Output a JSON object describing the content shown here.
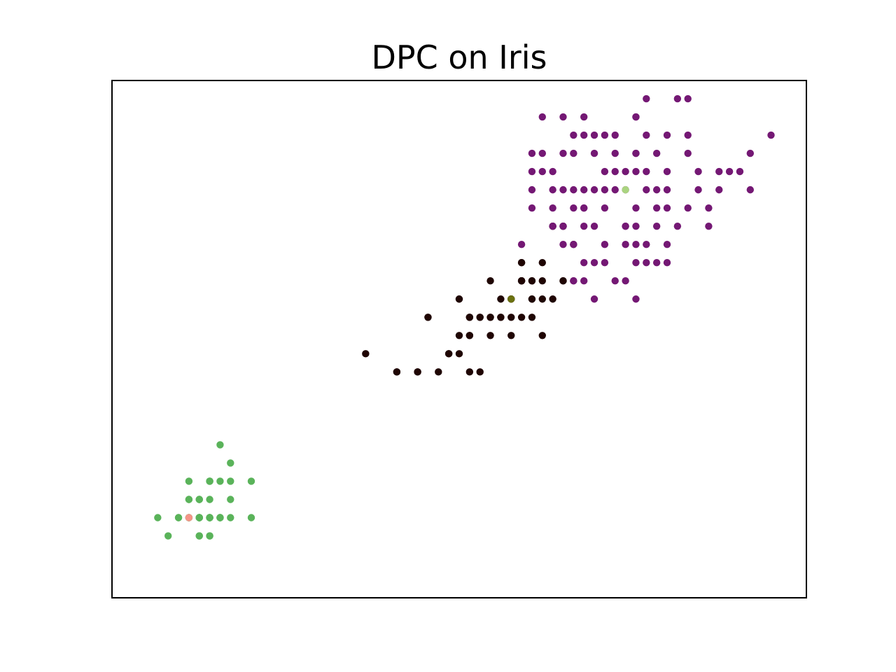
{
  "chart_data": {
    "type": "scatter",
    "title": "DPC on Iris",
    "xlabel": "",
    "ylabel": "",
    "grid": false,
    "axes_ticks": false,
    "xlim": [
      0.56,
      7.24
    ],
    "ylim": [
      -0.24,
      2.6
    ],
    "series": [
      {
        "color": "#5ab35a",
        "points": [
          [
            1.4,
            0.2
          ],
          [
            1.4,
            0.2
          ],
          [
            1.3,
            0.2
          ],
          [
            1.5,
            0.2
          ],
          [
            1.4,
            0.2
          ],
          [
            1.7,
            0.4
          ],
          [
            1.4,
            0.3
          ],
          [
            1.5,
            0.2
          ],
          [
            1.4,
            0.2
          ],
          [
            1.5,
            0.1
          ],
          [
            1.5,
            0.2
          ],
          [
            1.6,
            0.2
          ],
          [
            1.4,
            0.1
          ],
          [
            1.1,
            0.1
          ],
          [
            1.2,
            0.2
          ],
          [
            1.5,
            0.4
          ],
          [
            1.3,
            0.4
          ],
          [
            1.4,
            0.3
          ],
          [
            1.7,
            0.3
          ],
          [
            1.5,
            0.3
          ],
          [
            1.7,
            0.2
          ],
          [
            1.5,
            0.4
          ],
          [
            1.0,
            0.2
          ],
          [
            1.7,
            0.5
          ],
          [
            1.9,
            0.2
          ],
          [
            1.6,
            0.2
          ],
          [
            1.6,
            0.4
          ],
          [
            1.5,
            0.2
          ],
          [
            1.4,
            0.2
          ],
          [
            1.6,
            0.2
          ],
          [
            1.6,
            0.2
          ],
          [
            1.5,
            0.4
          ],
          [
            1.5,
            0.1
          ],
          [
            1.4,
            0.2
          ],
          [
            1.5,
            0.2
          ],
          [
            1.2,
            0.2
          ],
          [
            1.3,
            0.2
          ],
          [
            1.4,
            0.1
          ],
          [
            1.3,
            0.2
          ],
          [
            1.5,
            0.2
          ],
          [
            1.3,
            0.3
          ],
          [
            1.3,
            0.3
          ],
          [
            1.3,
            0.2
          ],
          [
            1.6,
            0.6
          ],
          [
            1.9,
            0.4
          ],
          [
            1.4,
            0.3
          ],
          [
            1.6,
            0.2
          ],
          [
            1.4,
            0.2
          ],
          [
            1.5,
            0.2
          ],
          [
            1.4,
            0.2
          ]
        ]
      },
      {
        "color": "#1f0503",
        "points": [
          [
            4.5,
            1.5
          ],
          [
            4.9,
            1.5
          ],
          [
            4.0,
            1.3
          ],
          [
            4.6,
            1.5
          ],
          [
            4.5,
            1.3
          ],
          [
            4.7,
            1.6
          ],
          [
            3.3,
            1.0
          ],
          [
            4.6,
            1.3
          ],
          [
            3.9,
            1.4
          ],
          [
            3.5,
            1.0
          ],
          [
            4.2,
            1.5
          ],
          [
            4.0,
            1.0
          ],
          [
            4.7,
            1.4
          ],
          [
            3.6,
            1.3
          ],
          [
            4.4,
            1.4
          ],
          [
            4.5,
            1.5
          ],
          [
            4.1,
            1.0
          ],
          [
            4.5,
            1.5
          ],
          [
            3.9,
            1.1
          ],
          [
            4.0,
            1.3
          ],
          [
            4.7,
            1.2
          ],
          [
            4.3,
            1.3
          ],
          [
            4.4,
            1.4
          ],
          [
            4.8,
            1.4
          ],
          [
            3.5,
            1.0
          ],
          [
            3.8,
            1.1
          ],
          [
            3.7,
            1.0
          ],
          [
            3.9,
            1.2
          ],
          [
            4.5,
            1.6
          ],
          [
            4.7,
            1.5
          ],
          [
            4.4,
            1.3
          ],
          [
            4.1,
            1.3
          ],
          [
            4.0,
            1.3
          ],
          [
            4.4,
            1.2
          ],
          [
            4.6,
            1.4
          ],
          [
            4.0,
            1.2
          ],
          [
            3.3,
            1.0
          ],
          [
            4.2,
            1.3
          ],
          [
            4.2,
            1.2
          ],
          [
            4.3,
            1.3
          ],
          [
            3.0,
            1.1
          ],
          [
            4.1,
            1.3
          ],
          [
            4.9,
            1.5
          ],
          [
            4.8,
            1.8
          ],
          [
            4.9,
            1.8
          ],
          [
            4.8,
            1.8
          ],
          [
            5.0,
            1.7
          ],
          [
            4.6,
            1.5
          ],
          [
            4.5,
            1.5
          ],
          [
            4.6,
            1.4
          ],
          [
            4.9,
            1.8
          ],
          [
            4.2,
            1.3
          ],
          [
            4.3,
            1.4
          ],
          [
            4.5,
            1.6
          ],
          [
            3.6,
            1.3
          ],
          [
            3.9,
            1.4
          ],
          [
            4.0,
            1.2
          ],
          [
            3.8,
            1.1
          ]
        ]
      },
      {
        "color": "#741874",
        "points": [
          [
            6.0,
            2.5
          ],
          [
            5.1,
            1.9
          ],
          [
            5.9,
            2.1
          ],
          [
            5.6,
            1.8
          ],
          [
            5.8,
            2.2
          ],
          [
            6.6,
            2.1
          ],
          [
            4.5,
            1.7
          ],
          [
            6.3,
            1.8
          ],
          [
            5.8,
            1.8
          ],
          [
            6.1,
            2.5
          ],
          [
            5.1,
            2.0
          ],
          [
            5.3,
            1.9
          ],
          [
            5.5,
            2.1
          ],
          [
            5.0,
            2.0
          ],
          [
            5.1,
            2.4
          ],
          [
            5.3,
            2.3
          ],
          [
            5.5,
            1.8
          ],
          [
            6.7,
            2.2
          ],
          [
            6.9,
            2.3
          ],
          [
            5.0,
            1.5
          ],
          [
            5.7,
            2.3
          ],
          [
            4.9,
            2.0
          ],
          [
            6.7,
            2.0
          ],
          [
            4.9,
            1.8
          ],
          [
            5.7,
            2.1
          ],
          [
            6.0,
            1.8
          ],
          [
            4.8,
            1.8
          ],
          [
            4.9,
            1.8
          ],
          [
            5.6,
            2.1
          ],
          [
            5.8,
            1.6
          ],
          [
            6.1,
            1.9
          ],
          [
            6.4,
            2.0
          ],
          [
            5.6,
            2.2
          ],
          [
            5.1,
            1.5
          ],
          [
            5.6,
            1.4
          ],
          [
            6.1,
            2.3
          ],
          [
            5.6,
            2.4
          ],
          [
            5.5,
            1.8
          ],
          [
            4.8,
            1.8
          ],
          [
            5.4,
            2.1
          ],
          [
            5.6,
            2.4
          ],
          [
            5.1,
            2.3
          ],
          [
            5.1,
            1.9
          ],
          [
            5.9,
            2.3
          ],
          [
            5.7,
            2.5
          ],
          [
            5.2,
            2.3
          ],
          [
            5.0,
            1.9
          ],
          [
            5.2,
            2.0
          ],
          [
            5.4,
            2.3
          ],
          [
            5.1,
            1.8
          ],
          [
            5.0,
            1.5
          ],
          [
            5.3,
            1.6
          ],
          [
            5.4,
            1.5
          ],
          [
            5.7,
            1.6
          ],
          [
            5.9,
            1.9
          ],
          [
            5.2,
            1.8
          ],
          [
            5.5,
            1.7
          ],
          [
            5.8,
            1.9
          ],
          [
            6.1,
            2.2
          ],
          [
            6.4,
            2.1
          ],
          [
            4.8,
            1.9
          ],
          [
            5.2,
            2.2
          ],
          [
            5.3,
            2.0
          ],
          [
            5.2,
            1.4
          ],
          [
            4.7,
            2.2
          ],
          [
            4.6,
            2.0
          ],
          [
            4.8,
            2.1
          ],
          [
            4.9,
            2.4
          ],
          [
            5.4,
            2.2
          ],
          [
            5.6,
            1.9
          ],
          [
            5.9,
            2.0
          ],
          [
            4.6,
            1.9
          ],
          [
            4.7,
            2.4
          ],
          [
            4.8,
            2.0
          ],
          [
            5.0,
            2.2
          ],
          [
            5.5,
            2.0
          ],
          [
            5.6,
            1.7
          ],
          [
            6.3,
            1.9
          ],
          [
            6.2,
            2.1
          ],
          [
            5.7,
            1.7
          ],
          [
            5.8,
            2.0
          ],
          [
            5.0,
            1.7
          ],
          [
            5.3,
            2.1
          ],
          [
            4.7,
            2.1
          ],
          [
            4.6,
            2.2
          ],
          [
            5.9,
            1.6
          ],
          [
            6.5,
            2.1
          ],
          [
            4.9,
            2.2
          ],
          [
            5.5,
            1.5
          ],
          [
            5.9,
            1.7
          ],
          [
            5.6,
            1.6
          ],
          [
            5.7,
            2.0
          ],
          [
            5.4,
            2.0
          ],
          [
            5.0,
            2.3
          ],
          [
            5.3,
            1.7
          ],
          [
            4.9,
            1.7
          ],
          [
            5.2,
            1.6
          ],
          [
            4.6,
            2.1
          ],
          [
            5.6,
            2.2
          ],
          [
            5.1,
            1.6
          ],
          [
            6.2,
            2.0
          ]
        ]
      },
      {
        "color": "#f59488",
        "points": [
          [
            1.3,
            0.2
          ]
        ]
      },
      {
        "color": "#6b710f",
        "points": [
          [
            4.4,
            1.4
          ]
        ]
      },
      {
        "color": "#aad480",
        "points": [
          [
            5.5,
            2.0
          ]
        ]
      }
    ]
  }
}
